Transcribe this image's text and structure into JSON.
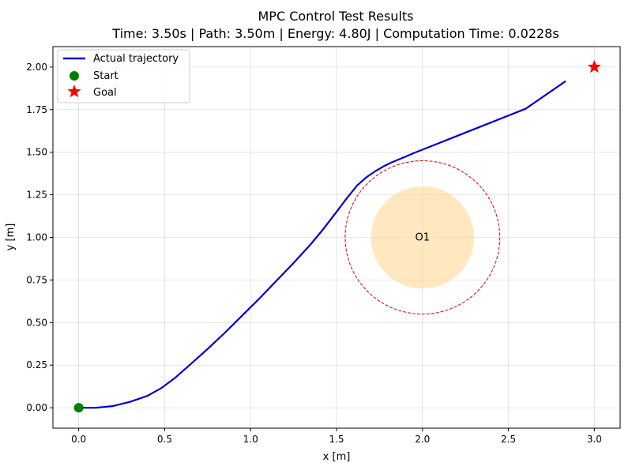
{
  "chart_data": {
    "type": "line",
    "title": "MPC Control Test Results",
    "subtitle": "Time: 3.50s | Path: 3.50m | Energy: 4.80J | Computation Time: 0.0228s",
    "xlabel": "x [m]",
    "ylabel": "y [m]",
    "xlim": [
      -0.15,
      3.15
    ],
    "ylim": [
      -0.12,
      2.12
    ],
    "xticks": [
      0.0,
      0.5,
      1.0,
      1.5,
      2.0,
      2.5,
      3.0
    ],
    "xtick_labels": [
      "0.0",
      "0.5",
      "1.0",
      "1.5",
      "2.0",
      "2.5",
      "3.0"
    ],
    "yticks": [
      0.0,
      0.25,
      0.5,
      0.75,
      1.0,
      1.25,
      1.5,
      1.75,
      2.0
    ],
    "ytick_labels": [
      "0.00",
      "0.25",
      "0.50",
      "0.75",
      "1.00",
      "1.25",
      "1.50",
      "1.75",
      "2.00"
    ],
    "grid": true,
    "legend_position": "top-left",
    "series": [
      {
        "name": "Actual trajectory",
        "color": "#0000cc",
        "x": [
          0.0,
          0.1,
          0.2,
          0.3,
          0.4,
          0.48,
          0.56,
          0.65,
          0.75,
          0.85,
          0.95,
          1.05,
          1.15,
          1.25,
          1.35,
          1.42,
          1.5,
          1.56,
          1.62,
          1.67,
          1.72,
          1.77,
          1.82,
          1.88,
          1.95,
          2.05,
          2.2,
          2.4,
          2.6,
          2.83
        ],
        "y": [
          0.0,
          0.0,
          0.01,
          0.035,
          0.07,
          0.115,
          0.175,
          0.255,
          0.345,
          0.44,
          0.54,
          0.64,
          0.745,
          0.85,
          0.96,
          1.045,
          1.15,
          1.23,
          1.305,
          1.35,
          1.385,
          1.415,
          1.44,
          1.465,
          1.495,
          1.535,
          1.595,
          1.675,
          1.755,
          1.915
        ]
      }
    ],
    "markers": [
      {
        "name": "Start",
        "x": 0.0,
        "y": 0.0,
        "shape": "circle",
        "color": "#008000"
      },
      {
        "name": "Goal",
        "x": 3.0,
        "y": 2.0,
        "shape": "star",
        "color": "#ff0000"
      }
    ],
    "obstacles": [
      {
        "label": "O1",
        "cx": 2.0,
        "cy": 1.0,
        "radius": 0.3,
        "safety_radius": 0.45,
        "fill": "#ffd27f",
        "safety_color": "#dd0000"
      }
    ]
  }
}
